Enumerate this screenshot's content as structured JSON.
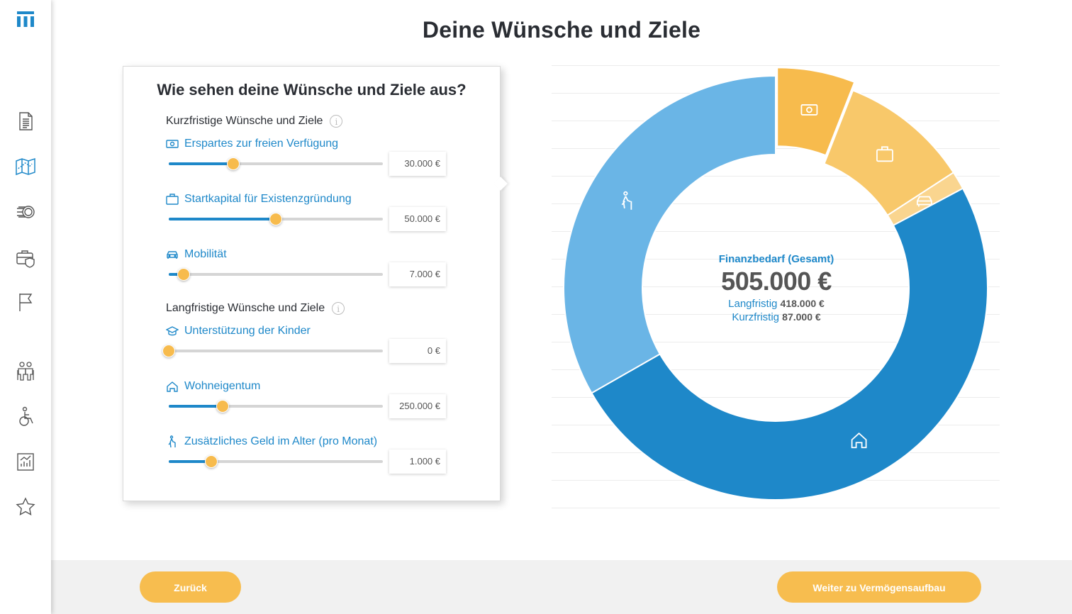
{
  "page": {
    "title": "Deine Wünsche und Ziele"
  },
  "sidebar": {
    "logo": "brand-logo-icon",
    "items": [
      {
        "icon": "document-icon"
      },
      {
        "icon": "map-icon",
        "active": true
      },
      {
        "icon": "coins-icon"
      },
      {
        "icon": "briefcase-shield-icon"
      },
      {
        "icon": "flag-icon"
      },
      {
        "icon": "family-icon"
      },
      {
        "icon": "wheelchair-icon"
      },
      {
        "icon": "chart-report-icon"
      },
      {
        "icon": "star-icon"
      }
    ]
  },
  "card": {
    "title": "Wie sehen deine Wünsche und Ziele aus?",
    "short_term_title": "Kurzfristige Wünsche und Ziele",
    "long_term_title": "Langfristige Wünsche und Ziele",
    "items": [
      {
        "icon": "money-icon",
        "label": "Erspartes zur freien Verfügung",
        "value": "30.000 €",
        "slider_fraction": 0.3
      },
      {
        "icon": "briefcase-icon",
        "label": "Startkapital für Existenzgründung",
        "value": "50.000 €",
        "slider_fraction": 0.5
      },
      {
        "icon": "car-icon",
        "label": "Mobilität",
        "value": "7.000 €",
        "slider_fraction": 0.07
      },
      {
        "icon": "graduation-cap-icon",
        "label": "Unterstützung der Kinder",
        "value": "0 €",
        "slider_fraction": 0.0
      },
      {
        "icon": "house-icon",
        "label": "Wohneigentum",
        "value": "250.000 €",
        "slider_fraction": 0.25
      },
      {
        "icon": "walking-elder-icon",
        "label": "Zusätzliches Geld im Alter (pro Monat)",
        "value": "1.000 €",
        "slider_fraction": 0.2
      }
    ]
  },
  "chart_data": {
    "type": "pie",
    "donut": true,
    "segments": [
      {
        "icon": "money-icon",
        "value": 30000,
        "color": "#f7bb4d"
      },
      {
        "icon": "briefcase-icon",
        "value": 50000,
        "color": "#f8c86a"
      },
      {
        "icon": "car-icon",
        "value": 7000,
        "color": "#fad58f"
      },
      {
        "icon": "house-icon",
        "value": 250000,
        "color": "#1e88c9"
      },
      {
        "icon": "walking-elder-icon",
        "value": 168000,
        "color": "#6ab5e6"
      }
    ],
    "center_label": "Finanzbedarf (Gesamt)",
    "total": "505.000 €",
    "long_term_label": "Langfristig",
    "long_term_value": "418.000 €",
    "short_term_label": "Kurzfristig",
    "short_term_value": "87.000 €",
    "grid": true
  },
  "footer": {
    "back_label": "Zurück",
    "next_label": "Weiter zu Vermögensaufbau"
  },
  "colors": {
    "accent": "#1e88c9",
    "button": "#f7bd4f",
    "text": "#2a2d33"
  }
}
